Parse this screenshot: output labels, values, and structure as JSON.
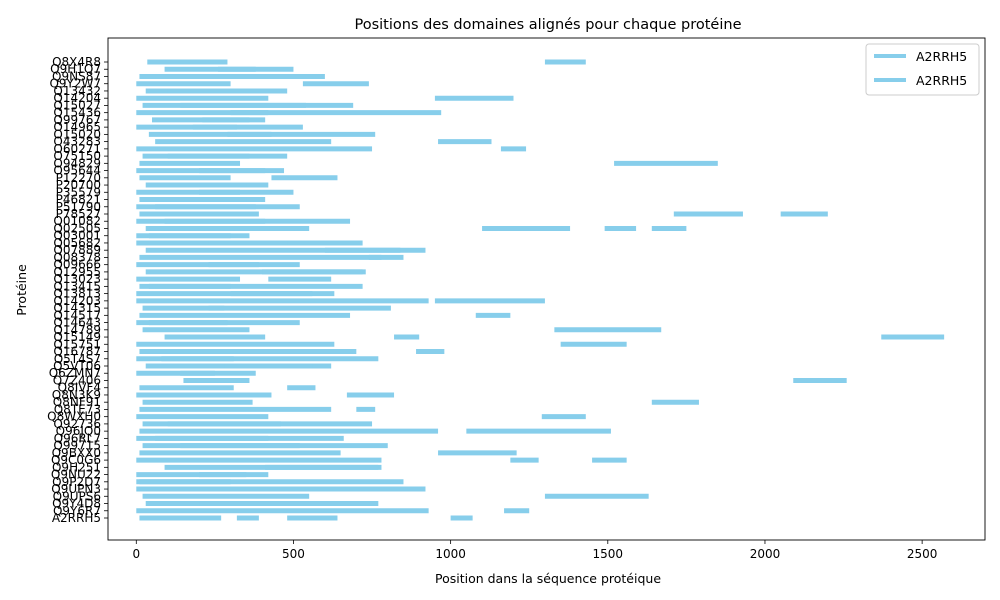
{
  "chart_data": {
    "type": "bar",
    "orientation": "horizontal-range",
    "title": "Positions des domaines alignés pour chaque protéine",
    "xlabel": "Position dans la séquence protéique",
    "ylabel": "Protéine",
    "xlim": [
      -90,
      2700
    ],
    "xticks": [
      0,
      500,
      1000,
      1500,
      2000,
      2500
    ],
    "grid": false,
    "legend": {
      "position": "top-right",
      "entries": [
        "A2RRH5",
        "A2RRH5"
      ]
    },
    "colors": {
      "segment": "#87ceeb",
      "axis": "#000000"
    },
    "y_tick_labels_visible": [
      "Q8X4R8",
      "Q9H1Q7",
      "Q9NS87",
      "Q9Y2W7",
      "Q13432",
      "Q14204",
      "Q15027",
      "Q15436",
      "Q99767",
      "O14965",
      "O15020",
      "O43283",
      "O60271",
      "O75150",
      "O94829",
      "O95644",
      "P12270",
      "P20700",
      "P35579",
      "P46821",
      "P51790",
      "P78527",
      "Q01082",
      "Q02505",
      "Q03001",
      "Q05682",
      "Q07889",
      "Q08378",
      "Q09666",
      "Q12955",
      "Q13023",
      "Q13415",
      "Q13813",
      "Q14203",
      "Q14315",
      "Q14517",
      "Q14643",
      "Q14789",
      "Q15149",
      "Q15751",
      "Q16787",
      "Q5T4S7",
      "Q5VT06",
      "Q6ZMN7",
      "Q7Z406",
      "Q8IVF4",
      "Q8N3K9",
      "Q8NF91",
      "Q8TE73",
      "Q8WXH0",
      "Q92736",
      "Q96JQ0",
      "Q96RL7",
      "Q99715",
      "Q9BXX0",
      "Q9C0G6",
      "Q9H251",
      "Q9NU22",
      "Q9P2D7",
      "Q9UPN3",
      "Q9UPS6",
      "Q9Y4D8",
      "Q9Y6R7",
      "A2RRH5"
    ],
    "proteins": [
      {
        "label": "Q8X4R8",
        "segments": [
          [
            35,
            290
          ],
          [
            1300,
            1430
          ]
        ]
      },
      {
        "label": "Q9H1Q7",
        "segments": [
          [
            90,
            380
          ],
          [
            260,
            500
          ]
        ]
      },
      {
        "label": "Q9NS87",
        "segments": [
          [
            10,
            320
          ],
          [
            140,
            600
          ]
        ]
      },
      {
        "label": "Q9Y2W7",
        "segments": [
          [
            0,
            300
          ],
          [
            530,
            740
          ]
        ]
      },
      {
        "label": "Q13432",
        "segments": [
          [
            30,
            450
          ],
          [
            100,
            480
          ]
        ]
      },
      {
        "label": "Q14204",
        "segments": [
          [
            0,
            420
          ],
          [
            950,
            1200
          ]
        ]
      },
      {
        "label": "Q15027",
        "segments": [
          [
            20,
            540
          ],
          [
            140,
            690
          ]
        ]
      },
      {
        "label": "Q15436",
        "segments": [
          [
            0,
            420
          ],
          [
            300,
            970
          ]
        ]
      },
      {
        "label": "Q99767",
        "segments": [
          [
            50,
            410
          ],
          [
            210,
            360
          ]
        ]
      },
      {
        "label": "O14965",
        "segments": [
          [
            0,
            530
          ],
          [
            180,
            320
          ]
        ]
      },
      {
        "label": "O15020",
        "segments": [
          [
            40,
            760
          ],
          [
            290,
            430
          ]
        ]
      },
      {
        "label": "O43283",
        "segments": [
          [
            60,
            620
          ],
          [
            960,
            1130
          ]
        ]
      },
      {
        "label": "O60271",
        "segments": [
          [
            0,
            750
          ],
          [
            1160,
            1240
          ]
        ]
      },
      {
        "label": "O75150",
        "segments": [
          [
            20,
            360
          ],
          [
            100,
            480
          ]
        ]
      },
      {
        "label": "O94829",
        "segments": [
          [
            10,
            330
          ],
          [
            1520,
            1850
          ]
        ]
      },
      {
        "label": "O95644",
        "segments": [
          [
            0,
            410
          ],
          [
            200,
            470
          ]
        ]
      },
      {
        "label": "P12270",
        "segments": [
          [
            10,
            300
          ],
          [
            430,
            640
          ]
        ]
      },
      {
        "label": "P20700",
        "segments": [
          [
            30,
            420
          ],
          [
            120,
            350
          ]
        ]
      },
      {
        "label": "P35579",
        "segments": [
          [
            0,
            330
          ],
          [
            200,
            500
          ]
        ]
      },
      {
        "label": "P46821",
        "segments": [
          [
            10,
            410
          ],
          [
            90,
            350
          ]
        ]
      },
      {
        "label": "P51790",
        "segments": [
          [
            0,
            520
          ],
          [
            60,
            380
          ]
        ]
      },
      {
        "label": "P78527",
        "segments": [
          [
            10,
            390
          ],
          [
            1710,
            1930
          ],
          [
            2050,
            2200
          ]
        ]
      },
      {
        "label": "Q01082",
        "segments": [
          [
            0,
            680
          ],
          [
            90,
            410
          ]
        ]
      },
      {
        "label": "Q02505",
        "segments": [
          [
            30,
            550
          ],
          [
            1100,
            1380
          ],
          [
            1490,
            1590
          ],
          [
            1640,
            1750
          ]
        ]
      },
      {
        "label": "Q03001",
        "segments": [
          [
            0,
            360
          ],
          [
            40,
            300
          ]
        ]
      },
      {
        "label": "Q05682",
        "segments": [
          [
            0,
            720
          ],
          [
            230,
            480
          ]
        ]
      },
      {
        "label": "Q07889",
        "segments": [
          [
            30,
            920
          ],
          [
            600,
            840
          ]
        ]
      },
      {
        "label": "Q08378",
        "segments": [
          [
            10,
            780
          ],
          [
            740,
            850
          ]
        ]
      },
      {
        "label": "Q09666",
        "segments": [
          [
            0,
            520
          ],
          [
            230,
            390
          ]
        ]
      },
      {
        "label": "Q12955",
        "segments": [
          [
            30,
            730
          ],
          [
            400,
            720
          ]
        ]
      },
      {
        "label": "Q13023",
        "segments": [
          [
            0,
            330
          ],
          [
            420,
            620
          ]
        ]
      },
      {
        "label": "Q13415",
        "segments": [
          [
            10,
            720
          ],
          [
            40,
            300
          ]
        ]
      },
      {
        "label": "Q13813",
        "segments": [
          [
            0,
            630
          ],
          [
            300,
            560
          ]
        ]
      },
      {
        "label": "Q14203",
        "segments": [
          [
            0,
            930
          ],
          [
            950,
            1300
          ]
        ]
      },
      {
        "label": "Q14315",
        "segments": [
          [
            20,
            810
          ],
          [
            230,
            280
          ]
        ]
      },
      {
        "label": "Q14517",
        "segments": [
          [
            10,
            680
          ],
          [
            1080,
            1190
          ]
        ]
      },
      {
        "label": "Q14643",
        "segments": [
          [
            0,
            520
          ],
          [
            40,
            290
          ]
        ]
      },
      {
        "label": "Q14789",
        "segments": [
          [
            20,
            360
          ],
          [
            1330,
            1670
          ]
        ]
      },
      {
        "label": "Q15149",
        "segments": [
          [
            90,
            410
          ],
          [
            820,
            900
          ],
          [
            2370,
            2570
          ]
        ]
      },
      {
        "label": "Q15751",
        "segments": [
          [
            0,
            630
          ],
          [
            1350,
            1560
          ]
        ]
      },
      {
        "label": "Q16787",
        "segments": [
          [
            10,
            700
          ],
          [
            890,
            980
          ]
        ]
      },
      {
        "label": "Q5T4S7",
        "segments": [
          [
            0,
            770
          ],
          [
            80,
            310
          ]
        ]
      },
      {
        "label": "Q5VT06",
        "segments": [
          [
            30,
            620
          ],
          [
            280,
            560
          ]
        ]
      },
      {
        "label": "Q6ZMN7",
        "segments": [
          [
            0,
            380
          ],
          [
            140,
            250
          ]
        ]
      },
      {
        "label": "Q7Z406",
        "segments": [
          [
            150,
            360
          ],
          [
            2090,
            2260
          ]
        ]
      },
      {
        "label": "Q8IVF4",
        "segments": [
          [
            10,
            310
          ],
          [
            480,
            570
          ]
        ]
      },
      {
        "label": "Q8N3K9",
        "segments": [
          [
            0,
            430
          ],
          [
            670,
            820
          ]
        ]
      },
      {
        "label": "Q8NF91",
        "segments": [
          [
            20,
            370
          ],
          [
            1640,
            1790
          ]
        ]
      },
      {
        "label": "Q8TE73",
        "segments": [
          [
            10,
            620
          ],
          [
            700,
            760
          ]
        ]
      },
      {
        "label": "Q8WXH0",
        "segments": [
          [
            0,
            420
          ],
          [
            1290,
            1430
          ]
        ]
      },
      {
        "label": "Q92736",
        "segments": [
          [
            20,
            750
          ],
          [
            100,
            460
          ]
        ]
      },
      {
        "label": "Q96JQ0",
        "segments": [
          [
            10,
            960
          ],
          [
            1050,
            1510
          ]
        ]
      },
      {
        "label": "Q96RL7",
        "segments": [
          [
            0,
            660
          ],
          [
            60,
            420
          ]
        ]
      },
      {
        "label": "Q99715",
        "segments": [
          [
            20,
            800
          ],
          [
            140,
            520
          ]
        ]
      },
      {
        "label": "Q9BXX0",
        "segments": [
          [
            10,
            650
          ],
          [
            960,
            1210
          ]
        ]
      },
      {
        "label": "Q9C0G6",
        "segments": [
          [
            0,
            780
          ],
          [
            1190,
            1280
          ],
          [
            1450,
            1560
          ]
        ]
      },
      {
        "label": "Q9H251",
        "segments": [
          [
            90,
            780
          ],
          [
            410,
            770
          ]
        ]
      },
      {
        "label": "Q9NU22",
        "segments": [
          [
            0,
            350
          ],
          [
            200,
            420
          ]
        ]
      },
      {
        "label": "Q9P2D7",
        "segments": [
          [
            10,
            850
          ],
          [
            0,
            300
          ]
        ]
      },
      {
        "label": "Q9UPN3",
        "segments": [
          [
            0,
            920
          ],
          [
            640,
            730
          ]
        ]
      },
      {
        "label": "Q9UPS6",
        "segments": [
          [
            20,
            550
          ],
          [
            1300,
            1630
          ]
        ]
      },
      {
        "label": "Q9Y4D8",
        "segments": [
          [
            30,
            770
          ],
          [
            200,
            570
          ]
        ]
      },
      {
        "label": "Q9Y6R7",
        "segments": [
          [
            0,
            930
          ],
          [
            1170,
            1250
          ]
        ]
      },
      {
        "label": "A2RRH5",
        "segments": [
          [
            10,
            270
          ],
          [
            320,
            390
          ],
          [
            480,
            640
          ],
          [
            1000,
            1070
          ]
        ]
      }
    ]
  }
}
